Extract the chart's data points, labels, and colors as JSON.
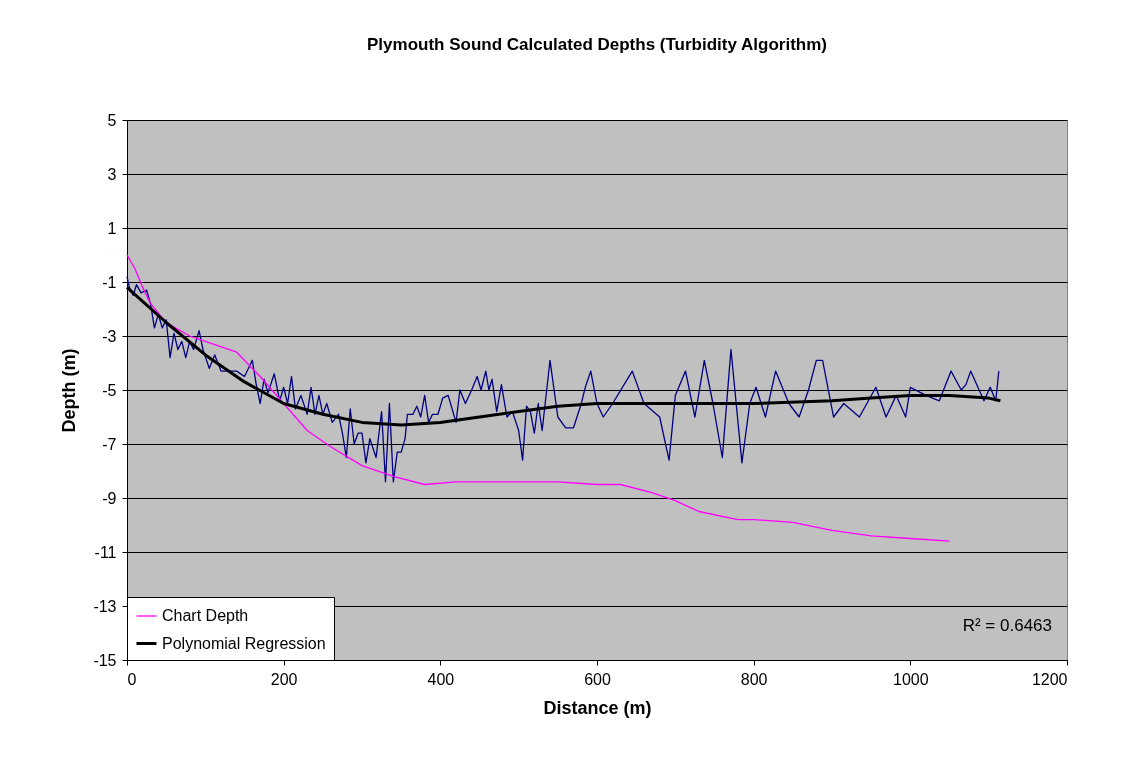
{
  "chart_data": {
    "type": "line",
    "title": "Plymouth Sound Calculated Depths (Turbidity Algorithm)",
    "xlabel": "Distance (m)",
    "ylabel": "Depth (m)",
    "xlim": [
      0,
      1200
    ],
    "xticks": [
      0,
      200,
      400,
      600,
      800,
      1000,
      1200
    ],
    "ylim": [
      -15,
      5
    ],
    "yticks": [
      -15,
      -13,
      -11,
      -9,
      -7,
      -5,
      -3,
      -1,
      1,
      3,
      5
    ],
    "grid": "y",
    "legend": "bottom left",
    "marker": "none",
    "line_style": "solid",
    "annotations": [
      "R² = 0.6463"
    ],
    "series": [
      {
        "color": "#000080",
        "x": [
          0,
          3,
          8,
          12,
          18,
          25,
          30,
          35,
          40,
          45,
          50,
          55,
          60,
          65,
          70,
          75,
          80,
          85,
          92,
          97,
          105,
          112,
          120,
          130,
          140,
          150,
          160,
          165,
          170,
          175,
          180,
          188,
          195,
          200,
          205,
          210,
          215,
          222,
          230,
          235,
          240,
          245,
          250,
          255,
          262,
          270,
          275,
          280,
          285,
          290,
          295,
          300,
          305,
          310,
          318,
          325,
          330,
          335,
          340,
          345,
          350,
          355,
          358,
          365,
          370,
          375,
          380,
          385,
          390,
          397,
          403,
          410,
          420,
          425,
          432,
          440,
          447,
          452,
          458,
          462,
          466,
          472,
          478,
          485,
          492,
          500,
          505,
          510,
          515,
          520,
          525,
          530,
          540,
          550,
          560,
          570,
          580,
          585,
          592,
          600,
          608,
          620,
          645,
          660,
          680,
          692,
          700,
          713,
          725,
          737,
          748,
          760,
          771,
          785,
          795,
          803,
          815,
          828,
          845,
          858,
          870,
          880,
          888,
          902,
          915,
          935,
          956,
          969,
          982,
          994,
          1000,
          1020,
          1037,
          1052,
          1065,
          1071,
          1077,
          1094,
          1102,
          1109,
          1113
        ],
        "values": [
          -0.8,
          -1.2,
          -1.5,
          -1.1,
          -1.4,
          -1.3,
          -1.8,
          -2.7,
          -2.2,
          -2.7,
          -2.4,
          -3.8,
          -2.9,
          -3.5,
          -3.2,
          -3.8,
          -3.2,
          -3.5,
          -2.8,
          -3.5,
          -4.2,
          -3.7,
          -4.3,
          -4.3,
          -4.3,
          -4.5,
          -3.9,
          -4.8,
          -5.5,
          -4.6,
          -5.1,
          -4.4,
          -5.4,
          -4.9,
          -5.5,
          -4.5,
          -5.7,
          -5.2,
          -5.9,
          -4.9,
          -5.9,
          -5.2,
          -5.9,
          -5.5,
          -6.2,
          -5.9,
          -6.6,
          -7.5,
          -5.7,
          -7.0,
          -6.6,
          -6.6,
          -7.7,
          -6.8,
          -7.5,
          -5.8,
          -8.4,
          -5.5,
          -8.4,
          -7.3,
          -7.3,
          -6.8,
          -5.9,
          -5.9,
          -5.6,
          -6.0,
          -5.2,
          -6.2,
          -5.9,
          -5.9,
          -5.3,
          -5.2,
          -6.2,
          -5.0,
          -5.5,
          -5.0,
          -4.5,
          -5.0,
          -4.3,
          -5.0,
          -4.6,
          -5.8,
          -4.8,
          -6.0,
          -5.8,
          -6.5,
          -7.6,
          -5.6,
          -5.8,
          -6.6,
          -5.5,
          -6.5,
          -3.9,
          -6.0,
          -6.4,
          -6.4,
          -5.5,
          -4.9,
          -4.3,
          -5.5,
          -6.0,
          -5.5,
          -4.3,
          -5.5,
          -6.0,
          -7.6,
          -5.2,
          -4.3,
          -6.0,
          -3.9,
          -5.5,
          -7.5,
          -3.5,
          -7.7,
          -5.5,
          -4.9,
          -6.0,
          -4.3,
          -5.5,
          -6.0,
          -5.0,
          -3.9,
          -3.9,
          -6.0,
          -5.5,
          -6.0,
          -4.9,
          -6.0,
          -5.2,
          -6.0,
          -4.9,
          -5.2,
          -5.4,
          -4.3,
          -5.0,
          -4.8,
          -4.3,
          -5.4,
          -4.9,
          -5.4,
          -4.3
        ]
      },
      {
        "name": "Chart Depth",
        "color": "#ff00ff",
        "x": [
          0,
          10,
          20,
          30,
          50,
          80,
          100,
          140,
          170,
          200,
          230,
          260,
          300,
          340,
          380,
          420,
          500,
          550,
          600,
          630,
          670,
          700,
          730,
          780,
          800,
          850,
          900,
          950,
          1000,
          1050
        ],
        "values": [
          0,
          -0.5,
          -1.2,
          -1.8,
          -2.5,
          -3.0,
          -3.2,
          -3.6,
          -4.5,
          -5.5,
          -6.5,
          -7.1,
          -7.8,
          -8.2,
          -8.5,
          -8.4,
          -8.4,
          -8.4,
          -8.5,
          -8.5,
          -8.8,
          -9.1,
          -9.5,
          -9.8,
          -9.8,
          -9.9,
          -10.2,
          -10.4,
          -10.5,
          -10.6
        ]
      },
      {
        "name": "Polynomial Regression",
        "color": "#000000",
        "x": [
          0,
          50,
          100,
          150,
          200,
          250,
          300,
          350,
          400,
          450,
          500,
          550,
          600,
          700,
          800,
          900,
          950,
          1000,
          1050,
          1100,
          1115
        ],
        "values": [
          -1.2,
          -2.5,
          -3.7,
          -4.7,
          -5.5,
          -5.9,
          -6.2,
          -6.3,
          -6.2,
          -6.0,
          -5.8,
          -5.6,
          -5.5,
          -5.5,
          -5.5,
          -5.4,
          -5.3,
          -5.2,
          -5.2,
          -5.3,
          -5.4
        ]
      }
    ]
  }
}
